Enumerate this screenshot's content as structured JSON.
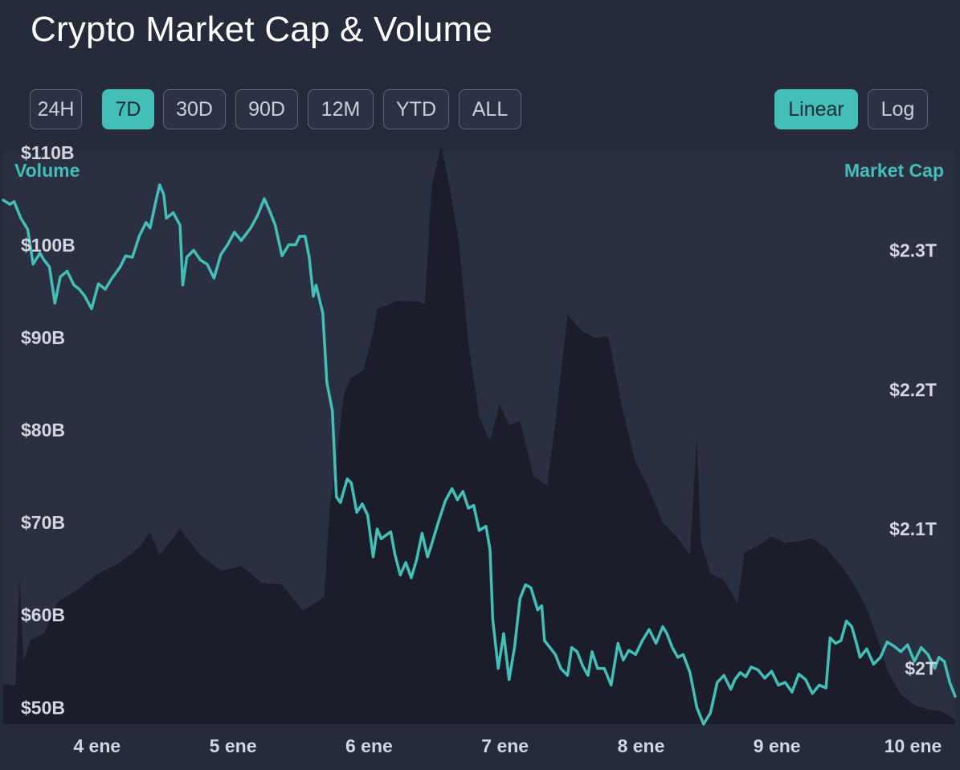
{
  "header": {
    "title": "Crypto Market Cap & Volume"
  },
  "range_buttons": [
    {
      "label": "24H",
      "active": false
    },
    {
      "label": "7D",
      "active": true
    },
    {
      "label": "30D",
      "active": false
    },
    {
      "label": "90D",
      "active": false
    },
    {
      "label": "12M",
      "active": false
    },
    {
      "label": "YTD",
      "active": false
    },
    {
      "label": "ALL",
      "active": false
    }
  ],
  "scale_buttons": [
    {
      "label": "Linear",
      "active": true
    },
    {
      "label": "Log",
      "active": false
    }
  ],
  "colors": {
    "accent": "#44bfb8",
    "background": "#262b3c",
    "volume_fill": "#1b1e2a"
  },
  "chart_data": {
    "type": "area",
    "left_axis": {
      "title": "Volume",
      "ticks": [
        "$50B",
        "$60B",
        "$70B",
        "$80B",
        "$90B",
        "$100B",
        "$110B"
      ],
      "tick_values": [
        50,
        60,
        70,
        80,
        90,
        100,
        110
      ],
      "range": [
        48.2,
        110
      ]
    },
    "right_axis": {
      "title": "Market Cap",
      "ticks": [
        "$2T",
        "$2.1T",
        "$2.2T",
        "$2.3T"
      ],
      "tick_values": [
        2.0,
        2.1,
        2.2,
        2.3
      ],
      "range": [
        1.96,
        2.37
      ]
    },
    "x_ticks": [
      "4 ene",
      "5 ene",
      "6 ene",
      "7 ene",
      "8 ene",
      "9 ene",
      "10 ene"
    ],
    "x_tick_values": [
      0.69,
      1.69,
      2.69,
      3.69,
      4.69,
      5.69,
      6.69
    ],
    "x_range": [
      0,
      7
    ],
    "series": [
      {
        "name": "Volume",
        "type": "area",
        "points": [
          [
            0.0,
            52.5
          ],
          [
            0.09,
            52.4
          ],
          [
            0.12,
            63.8
          ],
          [
            0.15,
            55.0
          ],
          [
            0.2,
            57.3
          ],
          [
            0.3,
            58.0
          ],
          [
            0.4,
            61.4
          ],
          [
            0.55,
            62.8
          ],
          [
            0.7,
            64.5
          ],
          [
            0.85,
            65.6
          ],
          [
            1.0,
            67.3
          ],
          [
            1.08,
            69.0
          ],
          [
            1.15,
            66.5
          ],
          [
            1.3,
            69.3
          ],
          [
            1.45,
            66.5
          ],
          [
            1.6,
            64.8
          ],
          [
            1.75,
            65.3
          ],
          [
            1.9,
            63.5
          ],
          [
            2.05,
            63.3
          ],
          [
            2.2,
            60.5
          ],
          [
            2.3,
            61.3
          ],
          [
            2.36,
            62.0
          ],
          [
            2.4,
            71.5
          ],
          [
            2.45,
            76.6
          ],
          [
            2.5,
            83.5
          ],
          [
            2.55,
            85.6
          ],
          [
            2.65,
            86.5
          ],
          [
            2.72,
            90.5
          ],
          [
            2.75,
            93.1
          ],
          [
            2.9,
            94.0
          ],
          [
            3.05,
            93.9
          ],
          [
            3.1,
            93.6
          ],
          [
            3.15,
            106.3
          ],
          [
            3.22,
            110.8
          ],
          [
            3.28,
            106.5
          ],
          [
            3.35,
            100.5
          ],
          [
            3.42,
            89.5
          ],
          [
            3.5,
            81.5
          ],
          [
            3.58,
            78.8
          ],
          [
            3.65,
            82.8
          ],
          [
            3.72,
            80.5
          ],
          [
            3.8,
            81.0
          ],
          [
            3.9,
            75.0
          ],
          [
            4.0,
            74.0
          ],
          [
            4.05,
            79.6
          ],
          [
            4.1,
            86.0
          ],
          [
            4.15,
            92.5
          ],
          [
            4.25,
            90.8
          ],
          [
            4.35,
            90.0
          ],
          [
            4.45,
            90.1
          ],
          [
            4.55,
            82.5
          ],
          [
            4.65,
            76.5
          ],
          [
            4.75,
            73.6
          ],
          [
            4.85,
            70.0
          ],
          [
            4.95,
            68.5
          ],
          [
            5.05,
            66.5
          ],
          [
            5.1,
            79.3
          ],
          [
            5.13,
            68.0
          ],
          [
            5.2,
            64.5
          ],
          [
            5.3,
            63.8
          ],
          [
            5.4,
            61.3
          ],
          [
            5.45,
            66.8
          ],
          [
            5.55,
            67.5
          ],
          [
            5.65,
            68.5
          ],
          [
            5.75,
            67.8
          ],
          [
            5.85,
            68.0
          ],
          [
            5.95,
            68.3
          ],
          [
            6.05,
            67.3
          ],
          [
            6.15,
            65.5
          ],
          [
            6.25,
            63.5
          ],
          [
            6.35,
            60.7
          ],
          [
            6.45,
            56.6
          ],
          [
            6.5,
            54.0
          ],
          [
            6.6,
            51.4
          ],
          [
            6.7,
            50.3
          ],
          [
            6.8,
            49.8
          ],
          [
            6.9,
            49.6
          ],
          [
            6.96,
            49.1
          ],
          [
            7.0,
            48.6
          ]
        ]
      },
      {
        "name": "Market Cap",
        "type": "line",
        "points": [
          [
            0.0,
            2.336
          ],
          [
            0.05,
            2.333
          ],
          [
            0.08,
            2.335
          ],
          [
            0.13,
            2.323
          ],
          [
            0.18,
            2.315
          ],
          [
            0.22,
            2.29
          ],
          [
            0.27,
            2.298
          ],
          [
            0.3,
            2.293
          ],
          [
            0.34,
            2.288
          ],
          [
            0.38,
            2.262
          ],
          [
            0.42,
            2.281
          ],
          [
            0.47,
            2.285
          ],
          [
            0.52,
            2.275
          ],
          [
            0.56,
            2.272
          ],
          [
            0.6,
            2.267
          ],
          [
            0.65,
            2.258
          ],
          [
            0.7,
            2.276
          ],
          [
            0.75,
            2.272
          ],
          [
            0.8,
            2.28
          ],
          [
            0.86,
            2.288
          ],
          [
            0.9,
            2.296
          ],
          [
            0.95,
            2.295
          ],
          [
            1.0,
            2.31
          ],
          [
            1.05,
            2.32
          ],
          [
            1.08,
            2.316
          ],
          [
            1.12,
            2.334
          ],
          [
            1.15,
            2.347
          ],
          [
            1.18,
            2.34
          ],
          [
            1.2,
            2.323
          ],
          [
            1.25,
            2.327
          ],
          [
            1.3,
            2.318
          ],
          [
            1.32,
            2.275
          ],
          [
            1.35,
            2.295
          ],
          [
            1.4,
            2.3
          ],
          [
            1.45,
            2.293
          ],
          [
            1.5,
            2.29
          ],
          [
            1.55,
            2.28
          ],
          [
            1.6,
            2.297
          ],
          [
            1.65,
            2.304
          ],
          [
            1.7,
            2.313
          ],
          [
            1.75,
            2.307
          ],
          [
            1.82,
            2.316
          ],
          [
            1.87,
            2.325
          ],
          [
            1.92,
            2.337
          ],
          [
            1.96,
            2.328
          ],
          [
            2.0,
            2.318
          ],
          [
            2.05,
            2.296
          ],
          [
            2.1,
            2.304
          ],
          [
            2.15,
            2.304
          ],
          [
            2.18,
            2.31
          ],
          [
            2.22,
            2.31
          ],
          [
            2.25,
            2.295
          ],
          [
            2.28,
            2.267
          ],
          [
            2.3,
            2.275
          ],
          [
            2.35,
            2.255
          ],
          [
            2.38,
            2.205
          ],
          [
            2.42,
            2.185
          ],
          [
            2.45,
            2.123
          ],
          [
            2.48,
            2.119
          ],
          [
            2.5,
            2.126
          ],
          [
            2.53,
            2.136
          ],
          [
            2.56,
            2.133
          ],
          [
            2.6,
            2.112
          ],
          [
            2.64,
            2.118
          ],
          [
            2.68,
            2.11
          ],
          [
            2.72,
            2.08
          ],
          [
            2.75,
            2.1
          ],
          [
            2.78,
            2.093
          ],
          [
            2.82,
            2.096
          ],
          [
            2.85,
            2.098
          ],
          [
            2.88,
            2.082
          ],
          [
            2.92,
            2.067
          ],
          [
            2.96,
            2.076
          ],
          [
            3.0,
            2.065
          ],
          [
            3.04,
            2.078
          ],
          [
            3.08,
            2.097
          ],
          [
            3.12,
            2.08
          ],
          [
            3.15,
            2.089
          ],
          [
            3.2,
            2.105
          ],
          [
            3.25,
            2.12
          ],
          [
            3.3,
            2.129
          ],
          [
            3.34,
            2.121
          ],
          [
            3.38,
            2.127
          ],
          [
            3.42,
            2.115
          ],
          [
            3.46,
            2.117
          ],
          [
            3.5,
            2.099
          ],
          [
            3.55,
            2.102
          ],
          [
            3.58,
            2.085
          ],
          [
            3.6,
            2.035
          ],
          [
            3.64,
            2.0
          ],
          [
            3.68,
            2.025
          ],
          [
            3.72,
            1.992
          ],
          [
            3.76,
            2.015
          ],
          [
            3.8,
            2.05
          ],
          [
            3.84,
            2.06
          ],
          [
            3.88,
            2.058
          ],
          [
            3.93,
            2.042
          ],
          [
            3.96,
            2.045
          ],
          [
            3.98,
            2.02
          ],
          [
            4.02,
            2.015
          ],
          [
            4.06,
            2.01
          ],
          [
            4.1,
            2.0
          ],
          [
            4.15,
            1.995
          ],
          [
            4.18,
            2.015
          ],
          [
            4.22,
            2.012
          ],
          [
            4.26,
            2.002
          ],
          [
            4.3,
            1.995
          ],
          [
            4.33,
            2.012
          ],
          [
            4.37,
            2.0
          ],
          [
            4.42,
            2.0
          ],
          [
            4.47,
            1.988
          ],
          [
            4.52,
            2.018
          ],
          [
            4.56,
            2.006
          ],
          [
            4.6,
            2.013
          ],
          [
            4.65,
            2.01
          ],
          [
            4.7,
            2.02
          ],
          [
            4.75,
            2.028
          ],
          [
            4.8,
            2.018
          ],
          [
            4.85,
            2.03
          ],
          [
            4.88,
            2.025
          ],
          [
            4.92,
            2.015
          ],
          [
            4.96,
            2.008
          ],
          [
            5.0,
            2.01
          ],
          [
            5.05,
            1.997
          ],
          [
            5.1,
            1.972
          ],
          [
            5.15,
            1.96
          ],
          [
            5.2,
            1.968
          ],
          [
            5.25,
            1.99
          ],
          [
            5.3,
            1.995
          ],
          [
            5.35,
            1.985
          ],
          [
            5.38,
            1.992
          ],
          [
            5.42,
            1.997
          ],
          [
            5.46,
            1.994
          ],
          [
            5.5,
            2.001
          ],
          [
            5.55,
            1.999
          ],
          [
            5.6,
            1.993
          ],
          [
            5.65,
            1.998
          ],
          [
            5.7,
            1.988
          ],
          [
            5.75,
            1.99
          ],
          [
            5.8,
            1.983
          ],
          [
            5.85,
            1.996
          ],
          [
            5.9,
            1.992
          ],
          [
            5.95,
            1.982
          ],
          [
            6.0,
            1.988
          ],
          [
            6.05,
            1.986
          ],
          [
            6.08,
            2.022
          ],
          [
            6.12,
            2.018
          ],
          [
            6.16,
            2.02
          ],
          [
            6.2,
            2.034
          ],
          [
            6.24,
            2.03
          ],
          [
            6.28,
            2.016
          ],
          [
            6.3,
            2.008
          ],
          [
            6.35,
            2.014
          ],
          [
            6.4,
            2.003
          ],
          [
            6.45,
            2.008
          ],
          [
            6.5,
            2.019
          ],
          [
            6.55,
            2.016
          ],
          [
            6.6,
            2.012
          ],
          [
            6.65,
            2.017
          ],
          [
            6.7,
            2.005
          ],
          [
            6.75,
            2.015
          ],
          [
            6.8,
            2.01
          ],
          [
            6.85,
            2.0
          ],
          [
            6.88,
            2.008
          ],
          [
            6.92,
            2.005
          ],
          [
            6.96,
            1.99
          ],
          [
            7.0,
            1.98
          ]
        ]
      }
    ]
  }
}
